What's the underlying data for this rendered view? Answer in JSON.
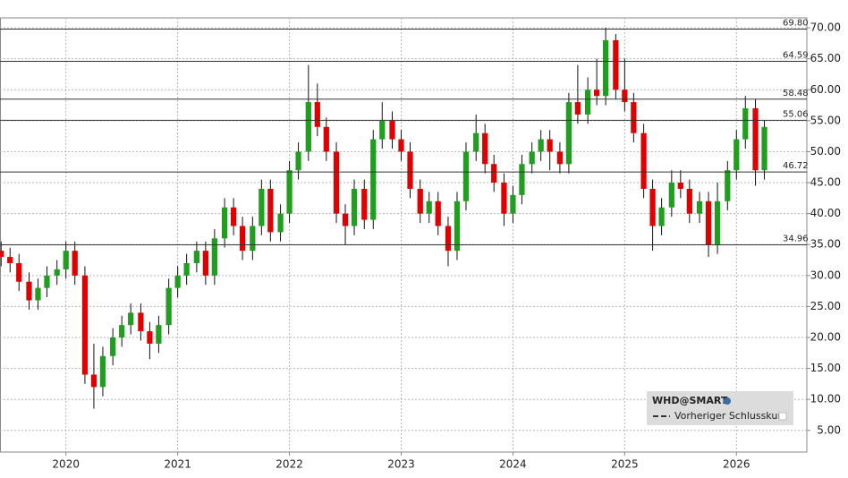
{
  "chart_data": {
    "type": "candlestick",
    "legend": {
      "title": "WHD@SMART",
      "entry": "Vorheriger Schlusskurs"
    },
    "up_color": "#1f9e1f",
    "down_color": "#e00000",
    "grid": true,
    "xlim": [
      2019.41,
      2026.63
    ],
    "ylim": [
      1.5,
      71.6
    ],
    "xticks": [
      2020,
      2021,
      2022,
      2023,
      2024,
      2025,
      2026
    ],
    "yticks": [
      {
        "value": 5,
        "label": "5.00"
      },
      {
        "value": 10,
        "label": "10.00"
      },
      {
        "value": 15,
        "label": "15.00"
      },
      {
        "value": 20,
        "label": "20.00"
      },
      {
        "value": 25,
        "label": "25.00"
      },
      {
        "value": 30,
        "label": "30.00"
      },
      {
        "value": 35,
        "label": "35.00"
      },
      {
        "value": 40,
        "label": "40.00"
      },
      {
        "value": 45,
        "label": "45.00"
      },
      {
        "value": 50,
        "label": "50.00"
      },
      {
        "value": 55,
        "label": "55.00"
      },
      {
        "value": 60,
        "label": "60.00"
      },
      {
        "value": 65,
        "label": "65.00"
      },
      {
        "value": 70,
        "label": "70.00"
      }
    ],
    "levels": [
      {
        "value": 69.8,
        "label": "69.80"
      },
      {
        "value": 64.59,
        "label": "64.59"
      },
      {
        "value": 58.48,
        "label": "58.48"
      },
      {
        "value": 55.06,
        "label": "55.06"
      },
      {
        "value": 46.72,
        "label": "46.72"
      },
      {
        "value": 34.96,
        "label": "34.96"
      }
    ],
    "x": [
      2019.42,
      2019.5,
      2019.58,
      2019.67,
      2019.75,
      2019.83,
      2019.92,
      2020.0,
      2020.08,
      2020.17,
      2020.25,
      2020.33,
      2020.42,
      2020.5,
      2020.58,
      2020.67,
      2020.75,
      2020.83,
      2020.92,
      2021.0,
      2021.08,
      2021.17,
      2021.25,
      2021.33,
      2021.42,
      2021.5,
      2021.58,
      2021.67,
      2021.75,
      2021.83,
      2021.92,
      2022.0,
      2022.08,
      2022.17,
      2022.25,
      2022.33,
      2022.42,
      2022.5,
      2022.58,
      2022.67,
      2022.75,
      2022.83,
      2022.92,
      2023.0,
      2023.08,
      2023.17,
      2023.25,
      2023.33,
      2023.42,
      2023.5,
      2023.58,
      2023.67,
      2023.75,
      2023.83,
      2023.92,
      2024.0,
      2024.08,
      2024.17,
      2024.25,
      2024.33,
      2024.42,
      2024.5,
      2024.58,
      2024.67,
      2024.75,
      2024.83,
      2024.92,
      2025.0,
      2025.08,
      2025.17,
      2025.25,
      2025.33,
      2025.42,
      2025.5,
      2025.58,
      2025.67,
      2025.75,
      2025.83,
      2025.92,
      2026.0,
      2026.08,
      2026.17,
      2026.25
    ],
    "open": [
      34,
      33,
      32,
      29,
      26,
      28,
      30,
      31,
      34,
      30,
      14,
      12,
      17,
      20,
      22,
      24,
      21,
      19,
      22,
      28,
      30,
      32,
      34,
      30,
      36,
      41,
      38,
      34,
      38,
      44,
      37,
      40,
      47,
      50,
      58,
      54,
      50,
      40,
      38,
      44,
      39,
      52,
      55,
      52,
      50,
      44,
      40,
      42,
      38,
      34,
      42,
      50,
      53,
      48,
      45,
      40,
      43,
      48,
      50,
      52,
      50,
      48,
      58,
      56,
      60,
      59,
      68,
      60,
      58,
      53,
      44,
      38,
      41,
      45,
      44,
      40,
      42,
      35,
      42,
      47,
      52,
      57,
      47
    ],
    "high": [
      35.5,
      34.5,
      33.5,
      30.5,
      29.5,
      31.5,
      32.5,
      35.5,
      35.5,
      31.5,
      19,
      18.5,
      21.5,
      23.5,
      25.5,
      25.5,
      22.5,
      23.5,
      29.5,
      31.5,
      33.5,
      35.5,
      35.5,
      37.5,
      42.5,
      42.5,
      39.5,
      39.5,
      45.5,
      45.5,
      41.5,
      48.5,
      51.5,
      64,
      61,
      55.5,
      51.5,
      41.5,
      45.5,
      45.5,
      53.5,
      58,
      56.5,
      53.5,
      51.5,
      45.5,
      43.5,
      43.5,
      39.5,
      43.5,
      51.5,
      56,
      54.5,
      49.5,
      46.5,
      44.5,
      49.5,
      51.5,
      53.5,
      53.5,
      51.5,
      59.5,
      64,
      62,
      65,
      70,
      69,
      65,
      59.5,
      54.5,
      45.5,
      42.5,
      47,
      47,
      45.5,
      43.5,
      43.5,
      45,
      48.5,
      53.5,
      59,
      58.5,
      55
    ],
    "low": [
      31.5,
      30.5,
      27.5,
      24.5,
      24.5,
      26.5,
      28.5,
      29.5,
      28.5,
      12.5,
      8.5,
      10.5,
      15.5,
      18.5,
      20.5,
      19.5,
      16.5,
      17.5,
      20.5,
      26.5,
      28.5,
      30.5,
      28.5,
      28.5,
      34.5,
      36.5,
      32.5,
      32.5,
      36.5,
      35.5,
      35.5,
      38.5,
      45.5,
      48.5,
      52.5,
      48.5,
      38.5,
      35,
      36.5,
      37.5,
      37.5,
      50.5,
      50.5,
      48.5,
      42.5,
      38.5,
      38.5,
      36.5,
      31.5,
      32.5,
      40.5,
      48.5,
      46.5,
      43.5,
      38,
      38.5,
      41.5,
      46.5,
      48.5,
      47,
      46.5,
      46.5,
      54.5,
      54.5,
      57.5,
      57.5,
      58.5,
      56.5,
      51.5,
      42.5,
      34,
      36.5,
      39.5,
      42.5,
      38.5,
      38.5,
      33,
      33.5,
      40.5,
      45.5,
      50.5,
      44.5,
      45.5
    ],
    "close": [
      33,
      32,
      29,
      26,
      28,
      30,
      31,
      34,
      30,
      14,
      12,
      17,
      20,
      22,
      24,
      21,
      19,
      22,
      28,
      30,
      32,
      34,
      30,
      36,
      41,
      38,
      34,
      38,
      44,
      37,
      40,
      47,
      50,
      58,
      54,
      50,
      40,
      38,
      44,
      39,
      52,
      55,
      52,
      50,
      44,
      40,
      42,
      38,
      34,
      42,
      50,
      53,
      48,
      45,
      40,
      43,
      48,
      50,
      52,
      50,
      48,
      58,
      56,
      60,
      59,
      68,
      60,
      58,
      53,
      44,
      38,
      41,
      45,
      44,
      40,
      42,
      35,
      42,
      47,
      52,
      57,
      47,
      54
    ]
  }
}
